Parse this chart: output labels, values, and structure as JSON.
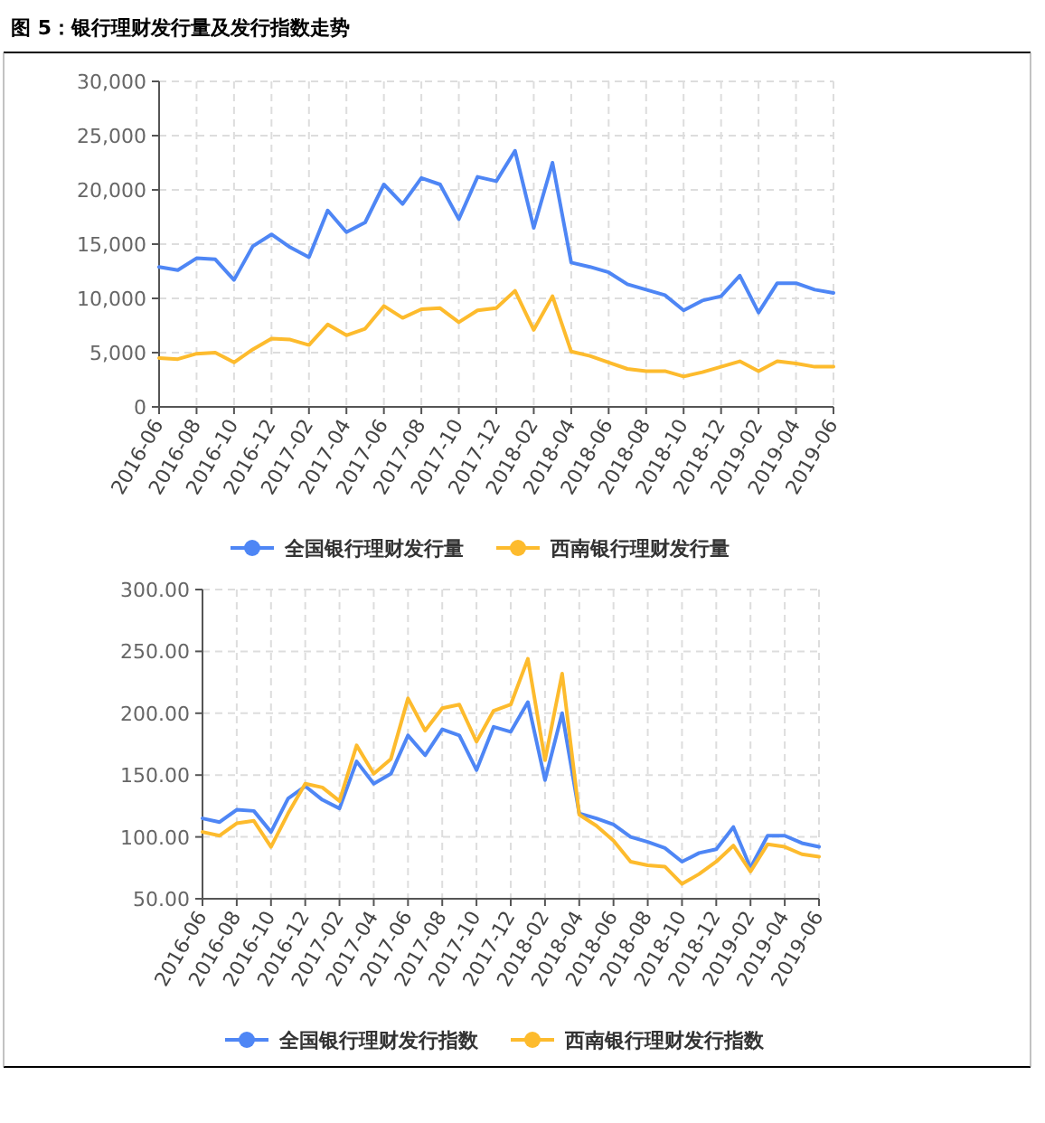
{
  "chart_data": [
    {
      "type": "line",
      "title": "图 5：银行理财发行量及发行指数走势",
      "categories": [
        "2016-06",
        null,
        "2016-08",
        null,
        "2016-10",
        null,
        "2016-12",
        null,
        "2017-02",
        null,
        "2017-04",
        null,
        "2017-06",
        null,
        "2017-08",
        null,
        "2017-10",
        null,
        "2017-12",
        null,
        "2018-02",
        null,
        "2018-04",
        null,
        "2018-06",
        null,
        "2018-08",
        null,
        "2018-10",
        null,
        "2018-12",
        null,
        "2019-02",
        null,
        "2019-04",
        null,
        "2019-06"
      ],
      "series": [
        {
          "name": "全国银行理财发行量",
          "color": "#4e86f5",
          "values": [
            12900,
            12600,
            13700,
            13600,
            11700,
            14800,
            15900,
            14700,
            13800,
            18100,
            16100,
            17000,
            20500,
            18700,
            21100,
            20500,
            17300,
            21200,
            20800,
            23600,
            16500,
            22500,
            13300,
            12900,
            12400,
            11300,
            10800,
            10300,
            8900,
            9800,
            10200,
            12100,
            8700,
            11400,
            11400,
            10800,
            10500
          ]
        },
        {
          "name": "西南银行理财发行量",
          "color": "#fdbb2d",
          "values": [
            4500,
            4400,
            4900,
            5000,
            4100,
            5300,
            6300,
            6200,
            5700,
            7600,
            6600,
            7200,
            9300,
            8200,
            9000,
            9100,
            7800,
            8900,
            9100,
            10700,
            7100,
            10200,
            5100,
            4700,
            4100,
            3500,
            3300,
            3300,
            2800,
            3200,
            3700,
            4200,
            3300,
            4200,
            4000,
            3700,
            3700
          ]
        }
      ],
      "ylim": [
        0,
        30000
      ],
      "yticks": [
        0,
        {
          "value": 5000,
          "label": "5,000"
        },
        {
          "value": 10000,
          "label": "10,000"
        },
        {
          "value": 15000,
          "label": "15,000"
        },
        {
          "value": 20000,
          "label": "20,000"
        },
        {
          "value": 25000,
          "label": "25,000"
        },
        {
          "value": 30000,
          "label": "30,000"
        }
      ],
      "grid": true,
      "legend": "bottom"
    },
    {
      "type": "line",
      "categories": [
        "2016-06",
        null,
        "2016-08",
        null,
        "2016-10",
        null,
        "2016-12",
        null,
        "2017-02",
        null,
        "2017-04",
        null,
        "2017-06",
        null,
        "2017-08",
        null,
        "2017-10",
        null,
        "2017-12",
        null,
        "2018-02",
        null,
        "2018-04",
        null,
        "2018-06",
        null,
        "2018-08",
        null,
        "2018-10",
        null,
        "2018-12",
        null,
        "2019-02",
        null,
        "2019-04",
        null,
        "2019-06"
      ],
      "series": [
        {
          "name": "全国银行理财发行指数",
          "color": "#4e86f5",
          "values": [
            115,
            112,
            122,
            121,
            104,
            131,
            141,
            130,
            123,
            161,
            143,
            151,
            182,
            166,
            187,
            182,
            154,
            189,
            185,
            209,
            146,
            200,
            119,
            115,
            110,
            100,
            96,
            91,
            80,
            87,
            90,
            108,
            75,
            101,
            101,
            95,
            92
          ]
        },
        {
          "name": "西南银行理财发行指数",
          "color": "#fdbb2d",
          "values": [
            104,
            101,
            111,
            113,
            92,
            119,
            143,
            140,
            129,
            174,
            151,
            163,
            212,
            186,
            204,
            207,
            177,
            202,
            207,
            244,
            162,
            232,
            118,
            109,
            97,
            80,
            77,
            76,
            62,
            70,
            80,
            93,
            72,
            94,
            92,
            86,
            84
          ]
        }
      ],
      "ylim": [
        50,
        300
      ],
      "yticks": [
        {
          "value": 50,
          "label": "50.00"
        },
        {
          "value": 100,
          "label": "100.00"
        },
        {
          "value": 150,
          "label": "150.00"
        },
        {
          "value": 200,
          "label": "200.00"
        },
        {
          "value": 250,
          "label": "250.00"
        },
        {
          "value": 300,
          "label": "300.00"
        }
      ],
      "grid": true,
      "legend": "bottom"
    }
  ]
}
